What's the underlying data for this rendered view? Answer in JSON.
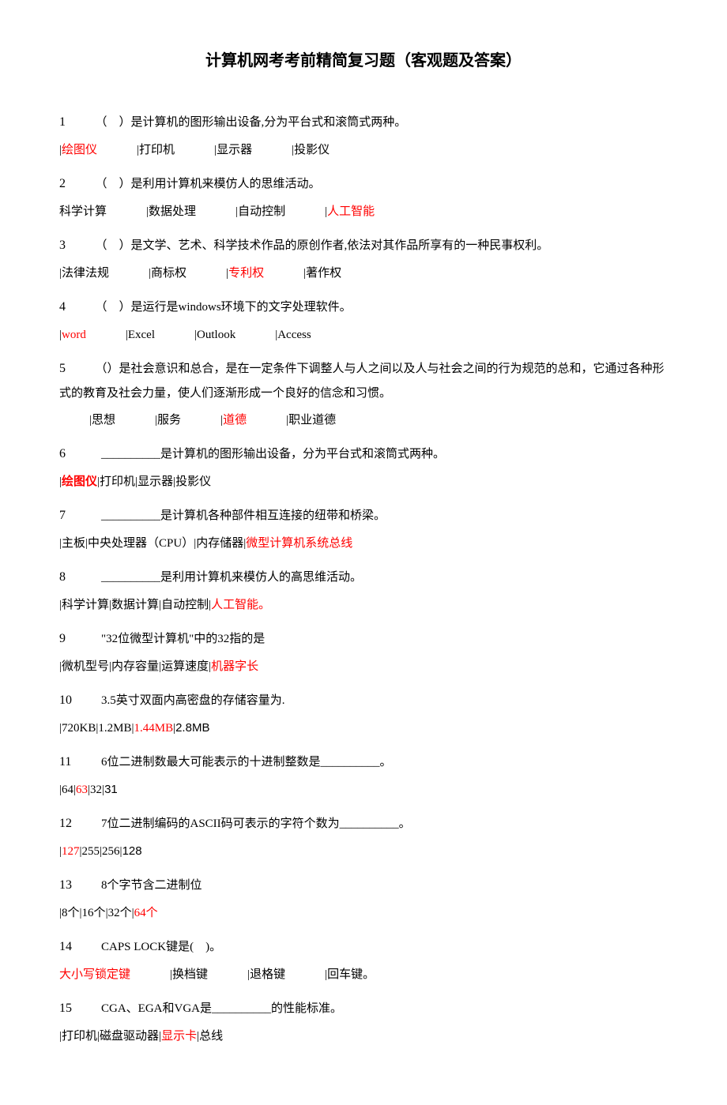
{
  "title": "计算机网考考前精简复习题（客观题及答案）",
  "colors": {
    "answer": "#ff0000",
    "text": "#000000",
    "background": "#ffffff"
  },
  "typography": {
    "body_fontsize": 15,
    "title_fontsize": 20,
    "line_height": 2,
    "font_family": "SimSun"
  },
  "questions": [
    {
      "num": "1",
      "text": "（　）是计算机的图形输出设备,分为平台式和滚筒式两种。",
      "options": [
        "绘图仪",
        "打印机",
        "显示器",
        "投影仪"
      ],
      "answer_index": 0,
      "spacing": "wide"
    },
    {
      "num": "2",
      "text": "（　）是利用计算机来模仿人的思维活动。",
      "options": [
        "科学计算",
        "数据处理",
        "自动控制",
        "人工智能"
      ],
      "answer_index": 3,
      "spacing": "wide",
      "no_leading_sep": true
    },
    {
      "num": "3",
      "text": "（　）是文学、艺术、科学技术作品的原创作者,依法对其作品所享有的一种民事权利。",
      "options": [
        "法律法规",
        "商标权",
        "专利权",
        "著作权"
      ],
      "answer_index": 2,
      "spacing": "wide"
    },
    {
      "num": "4",
      "text": "（　）是运行是windows环境下的文字处理软件。",
      "options": [
        "word",
        "Excel",
        "Outlook",
        "Access"
      ],
      "answer_index": 0,
      "spacing": "wide"
    },
    {
      "num": "5",
      "text": "（）是社会意识和总合，是在一定条件下调整人与人之间以及人与社会之间的行为规范的总和，它通过各种形式的教育及社会力量，使人们逐渐形成一个良好的信念和习惯。",
      "options": [
        "思想",
        "服务",
        "道德",
        "职业道德"
      ],
      "answer_index": 2,
      "spacing": "wide",
      "indent": true
    },
    {
      "num": "6",
      "text": "__________是计算机的图形输出设备，分为平台式和滚筒式两种。",
      "options": [
        "绘图仪",
        "打印机",
        "显示器",
        "投影仪"
      ],
      "answer_index": 0,
      "spacing": "tight",
      "bold_answer": true
    },
    {
      "num": "7",
      "text": "__________是计算机各种部件相互连接的纽带和桥梁。",
      "options": [
        "主板",
        "中央处理器（CPU）",
        "内存储器",
        "微型计算机系统总线"
      ],
      "answer_index": 3,
      "spacing": "tight"
    },
    {
      "num": "8",
      "text": "__________是利用计算机来模仿人的高思维活动。",
      "options": [
        "科学计算",
        "数据计算",
        "自动控制",
        "人工智能。"
      ],
      "answer_index": 3,
      "spacing": "tight"
    },
    {
      "num": "9",
      "text": "\"32位微型计算机\"中的32指的是",
      "options": [
        "微机型号",
        "内存容量",
        "运算速度",
        "机器字长"
      ],
      "answer_index": 3,
      "spacing": "tight"
    },
    {
      "num": "10",
      "text": "3.5英寸双面内高密盘的存储容量为.",
      "options": [
        "720KB",
        "1.2MB",
        "1.44MB",
        "2.8MB"
      ],
      "answer_index": 2,
      "spacing": "tight",
      "last_sans": true
    },
    {
      "num": "11",
      "text": "6位二进制数最大可能表示的十进制整数是__________。",
      "options": [
        "64",
        "63",
        "32",
        "31"
      ],
      "answer_index": 1,
      "spacing": "tight",
      "last_sans": true
    },
    {
      "num": "12",
      "text": "7位二进制编码的ASCII码可表示的字符个数为__________。",
      "options": [
        "127",
        "255",
        "256",
        "128"
      ],
      "answer_index": 0,
      "spacing": "tight",
      "last_sans": true
    },
    {
      "num": "13",
      "text": "8个字节含二进制位",
      "options": [
        "8个",
        "16个",
        "32个",
        "64个"
      ],
      "answer_index": 3,
      "spacing": "tight"
    },
    {
      "num": "14",
      "text": "CAPS LOCK键是(　)。",
      "options": [
        "大小写锁定键",
        "换档键",
        "退格键",
        "回车键。"
      ],
      "answer_index": 0,
      "spacing": "wide",
      "no_leading_sep": true
    },
    {
      "num": "15",
      "text": "CGA、EGA和VGA是__________的性能标准。",
      "options": [
        "打印机",
        "磁盘驱动器",
        "显示卡",
        "总线"
      ],
      "answer_index": 2,
      "spacing": "tight"
    }
  ]
}
